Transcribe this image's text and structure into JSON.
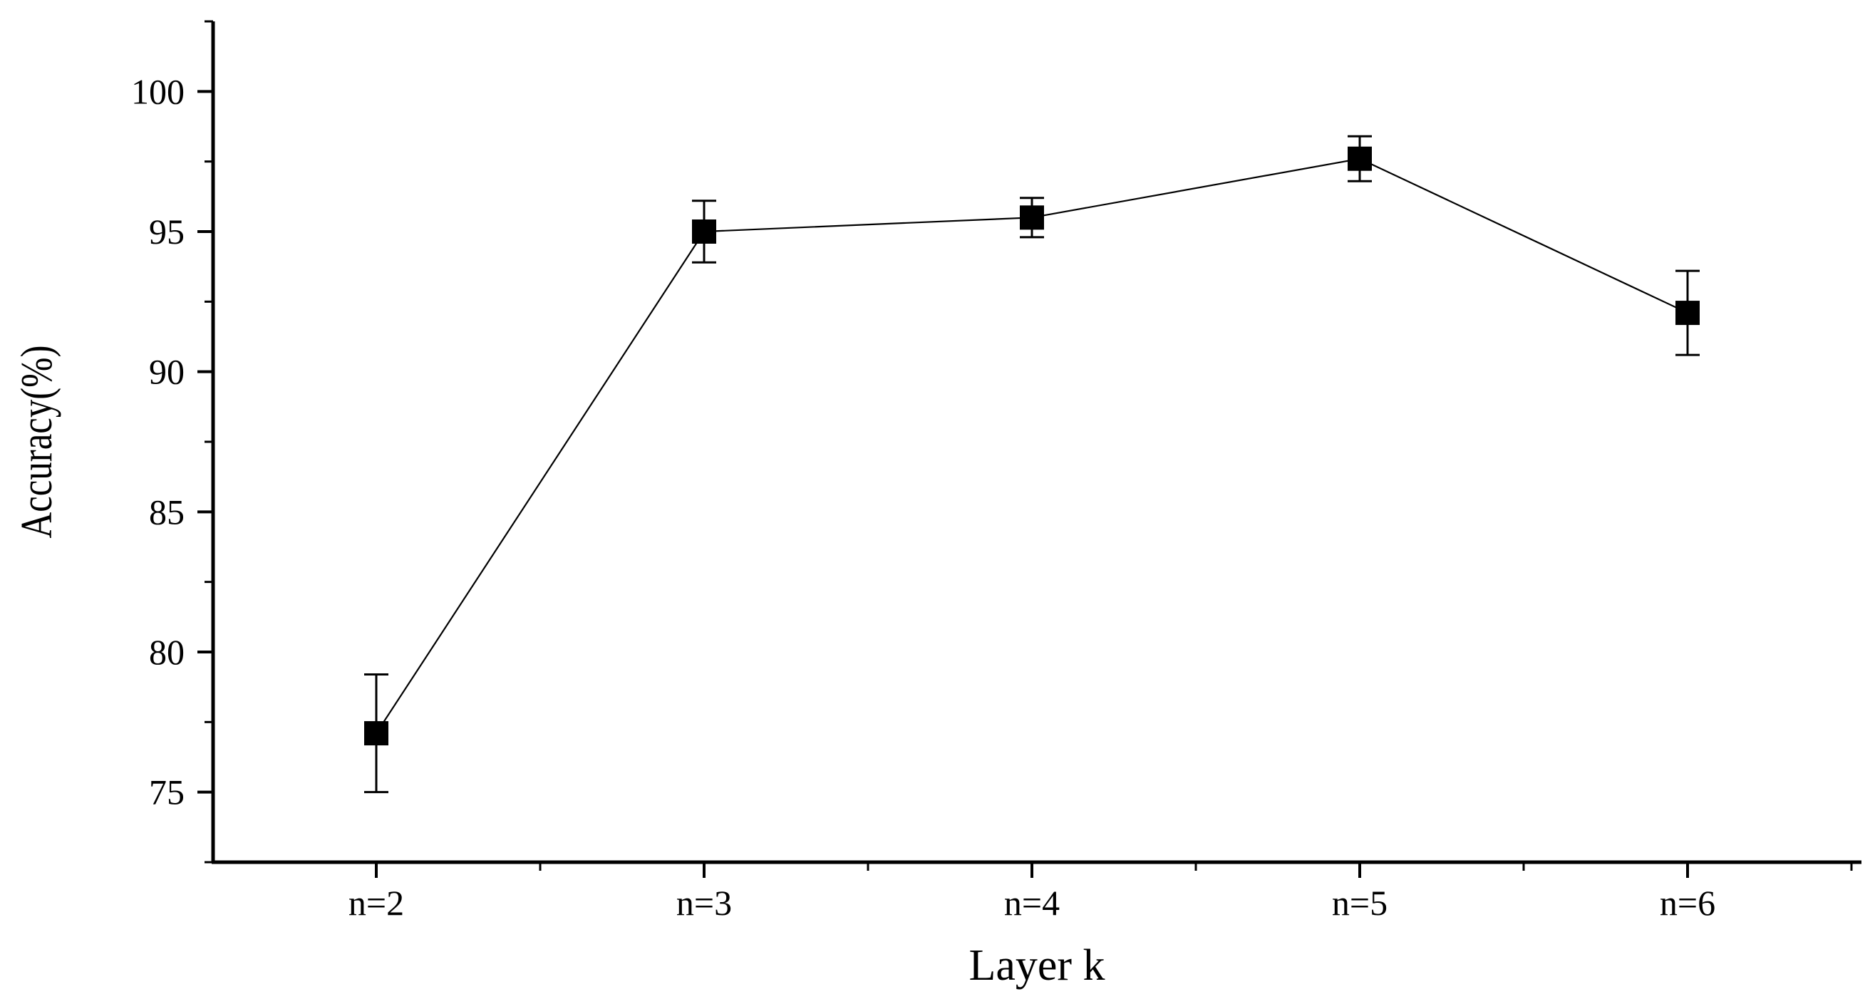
{
  "chart_data": {
    "type": "line",
    "title": "",
    "xlabel": "Layer k",
    "ylabel": "Accuracy(%)",
    "categories": [
      "n=2",
      "n=3",
      "n=4",
      "n=5",
      "n=6"
    ],
    "series": [
      {
        "values": [
          77.1,
          95.0,
          95.5,
          97.6,
          92.1
        ],
        "error": [
          2.1,
          1.1,
          0.7,
          0.8,
          1.5
        ]
      }
    ],
    "ylim": [
      72.5,
      102.5
    ],
    "yticks": [
      75,
      80,
      85,
      90,
      95,
      100
    ],
    "ytick_labels": [
      "75",
      "80",
      "85",
      "90",
      "95",
      "100"
    ],
    "marker": "square",
    "grid": false,
    "legend": "none",
    "colors": {
      "line": "#000000",
      "marker": "#000000",
      "axis": "#000000"
    }
  }
}
